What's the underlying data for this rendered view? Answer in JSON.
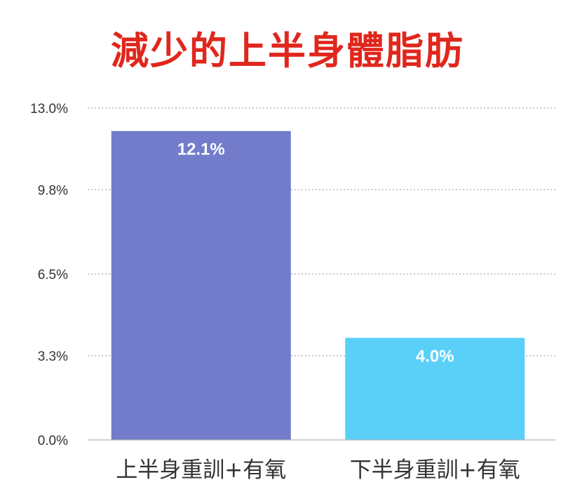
{
  "chart_data": {
    "type": "bar",
    "title": "減少的上半身體脂肪",
    "categories": [
      "上半身重訓+有氧",
      "下半身重訓+有氧"
    ],
    "values": [
      12.1,
      4.0
    ],
    "data_labels": [
      "12.1%",
      "4.0%"
    ],
    "colors": [
      "#727ccb",
      "#5ad0f9"
    ],
    "title_color": "#e0271d",
    "ylim": [
      0,
      13.0
    ],
    "yticks": [
      0.0,
      3.3,
      6.5,
      9.8,
      13.0
    ],
    "ytick_labels": [
      "0.0%",
      "3.3%",
      "6.5%",
      "9.8%",
      "13.0%"
    ],
    "xlabel": "",
    "ylabel": "",
    "grid": "horizontal-dotted",
    "legend": "none"
  }
}
